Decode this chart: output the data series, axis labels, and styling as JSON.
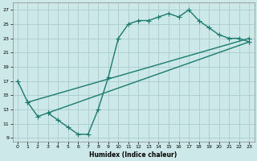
{
  "xlabel": "Humidex (Indice chaleur)",
  "bg_color": "#cce8e8",
  "grid_color": "#aacccc",
  "line_color": "#1a7a6e",
  "markersize": 2.5,
  "linewidth": 1.0,
  "xlim": [
    -0.5,
    23.5
  ],
  "ylim": [
    8.5,
    28
  ],
  "xticks": [
    0,
    1,
    2,
    3,
    4,
    5,
    6,
    7,
    8,
    9,
    10,
    11,
    12,
    13,
    14,
    15,
    16,
    17,
    18,
    19,
    20,
    21,
    22,
    23
  ],
  "yticks": [
    9,
    11,
    13,
    15,
    17,
    19,
    21,
    23,
    25,
    27
  ],
  "line1_x": [
    0,
    1,
    2,
    3,
    4,
    5,
    6,
    7,
    8,
    9,
    10,
    11,
    12,
    13,
    14,
    15,
    16,
    17,
    18,
    19,
    20,
    21,
    22,
    23
  ],
  "line1_y": [
    17,
    14,
    12,
    12.5,
    11.5,
    10.5,
    9.5,
    9.5,
    13,
    17.5,
    23,
    25,
    25.5,
    25.5,
    26,
    26.5,
    26,
    27,
    25.5,
    24.5,
    23.5,
    23,
    23,
    22.5
  ],
  "line2_x": [
    1,
    23
  ],
  "line2_y": [
    14,
    23
  ],
  "line3_x": [
    3,
    23
  ],
  "line3_y": [
    12.5,
    22.5
  ]
}
